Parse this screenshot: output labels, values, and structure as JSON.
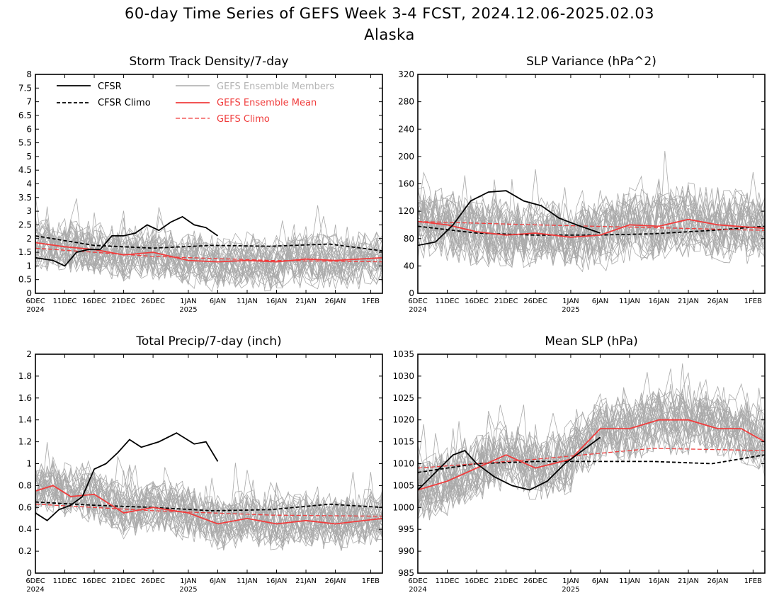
{
  "header": {
    "title": "60-day Time Series of GEFS Week 3-4 FCST, 2024.12.06-2025.02.03",
    "region": "Alaska"
  },
  "legend": {
    "cfsr": "CFSR",
    "cfsr_climo": "CFSR Climo",
    "gefs_members": "GEFS Ensemble Members",
    "gefs_mean": "GEFS Ensemble Mean",
    "gefs_climo": "GEFS Climo"
  },
  "colors": {
    "cfsr": "#000000",
    "gefs_mean": "#f03c3c",
    "gefs_members": "#aaaaaa",
    "legend_members_text": "#b4b4b4"
  },
  "x_axis": {
    "start_date": "2024-12-06",
    "days": 60,
    "tick_labels": [
      "6DEC",
      "11DEC",
      "16DEC",
      "21DEC",
      "26DEC",
      "1JAN",
      "6JAN",
      "11JAN",
      "16JAN",
      "21JAN",
      "26JAN",
      "1FEB"
    ],
    "year_labels": [
      {
        "under": "6DEC",
        "text": "2024"
      },
      {
        "under": "1JAN",
        "text": "2025"
      }
    ]
  },
  "chart_data": [
    {
      "id": "storm",
      "type": "line",
      "title": "Storm Track Density/7-day",
      "ylim": [
        0,
        8
      ],
      "yticks": [
        "0",
        "0.5",
        "1",
        "1.5",
        "2",
        "2.5",
        "3",
        "3.5",
        "4",
        "4.5",
        "5",
        "5.5",
        "6",
        "6.5",
        "7",
        "7.5",
        "8"
      ],
      "ensemble": {
        "members": 30,
        "base": 1.4,
        "spread": 0.85,
        "min": 0.05,
        "max": 4.8,
        "mean_offset": 0.55
      },
      "series": [
        {
          "key": "cfsr",
          "name": "CFSR",
          "x": [
            "2024-12-06",
            "2024-12-09",
            "2024-12-11",
            "2024-12-13",
            "2024-12-15",
            "2024-12-17",
            "2024-12-19",
            "2024-12-21",
            "2024-12-23",
            "2024-12-25",
            "2024-12-27",
            "2024-12-29",
            "2024-12-31",
            "2025-01-02",
            "2025-01-04",
            "2025-01-06"
          ],
          "y": [
            1.3,
            1.2,
            1.0,
            1.5,
            1.6,
            1.6,
            2.1,
            2.1,
            2.2,
            2.5,
            2.3,
            2.6,
            2.8,
            2.5,
            2.4,
            2.1
          ]
        },
        {
          "key": "cfsr_climo",
          "name": "CFSR Climo",
          "x": [
            "2024-12-06",
            "2024-12-16",
            "2024-12-26",
            "2025-01-05",
            "2025-01-15",
            "2025-01-25",
            "2025-02-03"
          ],
          "y": [
            2.1,
            1.75,
            1.65,
            1.75,
            1.72,
            1.8,
            1.55
          ]
        },
        {
          "key": "gefs_mean",
          "name": "GEFS Ensemble Mean",
          "x": [
            "2024-12-06",
            "2024-12-11",
            "2024-12-16",
            "2024-12-21",
            "2024-12-26",
            "2025-01-01",
            "2025-01-06",
            "2025-01-11",
            "2025-01-16",
            "2025-01-21",
            "2025-01-26",
            "2025-02-03"
          ],
          "y": [
            1.85,
            1.7,
            1.6,
            1.4,
            1.5,
            1.2,
            1.15,
            1.2,
            1.15,
            1.25,
            1.2,
            1.3
          ]
        },
        {
          "key": "gefs_climo",
          "name": "GEFS Climo",
          "x": [
            "2024-12-06",
            "2024-12-26",
            "2025-01-15",
            "2025-02-03"
          ],
          "y": [
            1.65,
            1.35,
            1.2,
            1.15
          ]
        }
      ]
    },
    {
      "id": "slpvar",
      "type": "line",
      "title": "SLP Variance (hPa^2)",
      "ylim": [
        0,
        320
      ],
      "yticks": [
        "0",
        "40",
        "80",
        "120",
        "160",
        "200",
        "240",
        "280",
        "320"
      ],
      "ensemble": {
        "members": 30,
        "base": 100,
        "spread": 45,
        "min": 20,
        "max": 300,
        "mean_offset": 30
      },
      "series": [
        {
          "key": "cfsr",
          "name": "CFSR",
          "x": [
            "2024-12-06",
            "2024-12-09",
            "2024-12-12",
            "2024-12-15",
            "2024-12-18",
            "2024-12-21",
            "2024-12-24",
            "2024-12-27",
            "2024-12-30",
            "2025-01-02",
            "2025-01-06"
          ],
          "y": [
            70,
            75,
            100,
            135,
            148,
            150,
            135,
            128,
            110,
            100,
            88
          ]
        },
        {
          "key": "cfsr_climo",
          "name": "CFSR Climo",
          "x": [
            "2024-12-06",
            "2024-12-16",
            "2024-12-26",
            "2025-01-05",
            "2025-01-15",
            "2025-01-25",
            "2025-02-03"
          ],
          "y": [
            98,
            88,
            85,
            85,
            87,
            92,
            98
          ]
        },
        {
          "key": "gefs_mean",
          "name": "GEFS Ensemble Mean",
          "x": [
            "2024-12-06",
            "2024-12-11",
            "2024-12-16",
            "2024-12-21",
            "2024-12-26",
            "2025-01-01",
            "2025-01-06",
            "2025-01-11",
            "2025-01-16",
            "2025-01-21",
            "2025-01-26",
            "2025-02-03"
          ],
          "y": [
            105,
            100,
            90,
            85,
            88,
            82,
            85,
            100,
            98,
            108,
            100,
            95
          ]
        },
        {
          "key": "gefs_climo",
          "name": "GEFS Climo",
          "x": [
            "2024-12-06",
            "2024-12-26",
            "2025-01-15",
            "2025-02-03"
          ],
          "y": [
            105,
            100,
            96,
            92
          ]
        }
      ]
    },
    {
      "id": "precip",
      "type": "line",
      "title": "Total Precip/7-day (inch)",
      "ylim": [
        0,
        2
      ],
      "yticks": [
        "0",
        "0.2",
        "0.4",
        "0.6",
        "0.8",
        "1",
        "1.2",
        "1.4",
        "1.6",
        "1.8",
        "2"
      ],
      "ensemble": {
        "members": 30,
        "base": 0.6,
        "spread": 0.22,
        "min": 0.05,
        "max": 1.4,
        "mean_offset": 0.15
      },
      "series": [
        {
          "key": "cfsr",
          "name": "CFSR",
          "x": [
            "2024-12-06",
            "2024-12-08",
            "2024-12-10",
            "2024-12-12",
            "2024-12-14",
            "2024-12-16",
            "2024-12-18",
            "2024-12-20",
            "2024-12-22",
            "2024-12-24",
            "2024-12-27",
            "2024-12-30",
            "2025-01-02",
            "2025-01-04",
            "2025-01-06"
          ],
          "y": [
            0.55,
            0.48,
            0.58,
            0.62,
            0.7,
            0.95,
            1.0,
            1.1,
            1.22,
            1.15,
            1.2,
            1.28,
            1.18,
            1.2,
            1.02
          ]
        },
        {
          "key": "cfsr_climo",
          "name": "CFSR Climo",
          "x": [
            "2024-12-06",
            "2024-12-16",
            "2024-12-26",
            "2025-01-05",
            "2025-01-15",
            "2025-01-25",
            "2025-02-03"
          ],
          "y": [
            0.65,
            0.62,
            0.6,
            0.57,
            0.58,
            0.63,
            0.6
          ]
        },
        {
          "key": "gefs_mean",
          "name": "GEFS Ensemble Mean",
          "x": [
            "2024-12-06",
            "2024-12-09",
            "2024-12-12",
            "2024-12-16",
            "2024-12-21",
            "2024-12-26",
            "2025-01-01",
            "2025-01-06",
            "2025-01-11",
            "2025-01-16",
            "2025-01-21",
            "2025-01-26",
            "2025-02-03"
          ],
          "y": [
            0.75,
            0.8,
            0.7,
            0.72,
            0.55,
            0.6,
            0.55,
            0.45,
            0.5,
            0.45,
            0.48,
            0.45,
            0.5
          ]
        },
        {
          "key": "gefs_climo",
          "name": "GEFS Climo",
          "x": [
            "2024-12-06",
            "2024-12-26",
            "2025-01-15",
            "2025-02-03"
          ],
          "y": [
            0.63,
            0.57,
            0.53,
            0.52
          ]
        }
      ]
    },
    {
      "id": "meanslp",
      "type": "line",
      "title": "Mean SLP (hPa)",
      "ylim": [
        985,
        1035
      ],
      "yticks": [
        "985",
        "990",
        "995",
        "1000",
        "1005",
        "1010",
        "1015",
        "1020",
        "1025",
        "1030",
        "1035"
      ],
      "ensemble": {
        "members": 30,
        "base": 1012,
        "spread": 6.5,
        "min": 992,
        "max": 1034,
        "mean_offset": 2
      },
      "series": [
        {
          "key": "cfsr",
          "name": "CFSR",
          "x": [
            "2024-12-06",
            "2024-12-09",
            "2024-12-12",
            "2024-12-14",
            "2024-12-16",
            "2024-12-19",
            "2024-12-22",
            "2024-12-25",
            "2024-12-28",
            "2024-12-31",
            "2025-01-03",
            "2025-01-06"
          ],
          "y": [
            1004,
            1008,
            1012,
            1013,
            1010,
            1007,
            1005,
            1004,
            1006,
            1010,
            1013,
            1016
          ]
        },
        {
          "key": "cfsr_climo",
          "name": "CFSR Climo",
          "x": [
            "2024-12-06",
            "2024-12-16",
            "2024-12-26",
            "2025-01-05",
            "2025-01-15",
            "2025-01-25",
            "2025-02-03"
          ],
          "y": [
            1008,
            1010,
            1010.5,
            1010.5,
            1010.5,
            1010,
            1012
          ]
        },
        {
          "key": "gefs_mean",
          "name": "GEFS Ensemble Mean",
          "x": [
            "2024-12-06",
            "2024-12-11",
            "2024-12-16",
            "2024-12-21",
            "2024-12-26",
            "2025-01-01",
            "2025-01-06",
            "2025-01-11",
            "2025-01-16",
            "2025-01-21",
            "2025-01-26",
            "2025-01-30",
            "2025-02-03"
          ],
          "y": [
            1004,
            1006,
            1009,
            1012,
            1009,
            1011,
            1018,
            1018,
            1020,
            1020,
            1018,
            1018,
            1015
          ]
        },
        {
          "key": "gefs_climo",
          "name": "GEFS Climo",
          "x": [
            "2024-12-06",
            "2024-12-26",
            "2025-01-15",
            "2025-02-03"
          ],
          "y": [
            1009,
            1011,
            1013.5,
            1013
          ]
        }
      ]
    }
  ]
}
